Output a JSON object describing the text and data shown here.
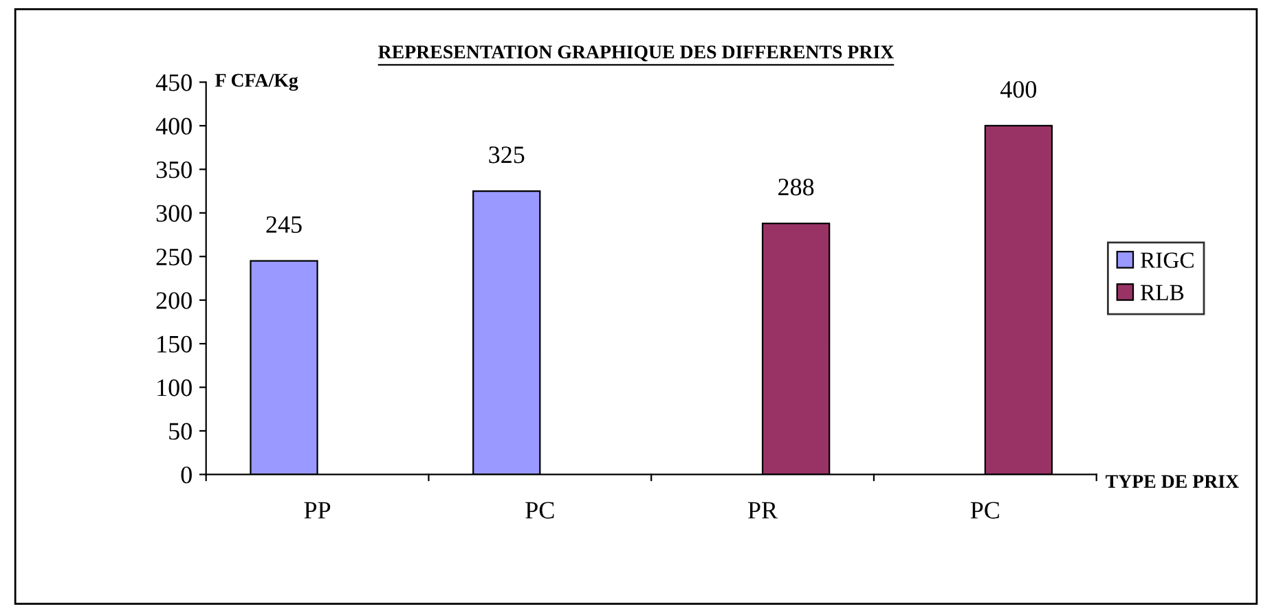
{
  "chart_data": {
    "type": "bar",
    "title": "REPRESENTATION GRAPHIQUE DES DIFFERENTS PRIX",
    "ylabel": "F CFA/Kg",
    "xlabel": "TYPE DE PRIX",
    "categories": [
      "PP",
      "PC",
      "PR",
      "PC"
    ],
    "series": [
      {
        "name": "RIGC",
        "color": "#9999ff",
        "values": [
          245,
          325,
          null,
          null
        ]
      },
      {
        "name": "RLB",
        "color": "#993366",
        "values": [
          null,
          null,
          288,
          400
        ]
      }
    ],
    "ylim": [
      0,
      450
    ],
    "yticks": [
      0,
      50,
      100,
      150,
      200,
      250,
      300,
      350,
      400,
      450
    ],
    "grid": false,
    "legend": "right",
    "data_labels": true
  }
}
